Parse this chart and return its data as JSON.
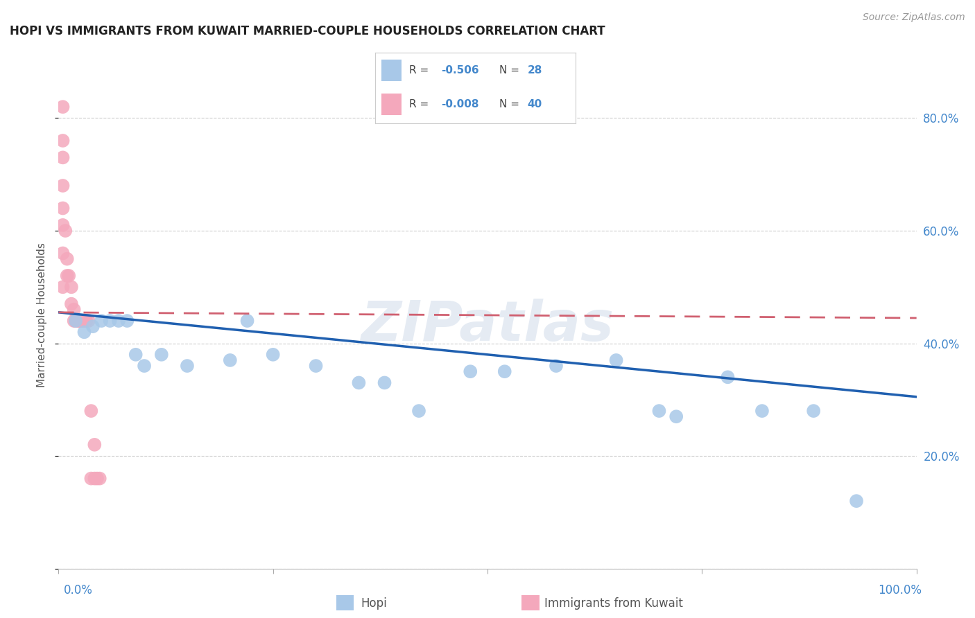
{
  "title": "HOPI VS IMMIGRANTS FROM KUWAIT MARRIED-COUPLE HOUSEHOLDS CORRELATION CHART",
  "source": "Source: ZipAtlas.com",
  "ylabel": "Married-couple Households",
  "watermark": "ZIPatlas",
  "legend_R_hopi": "-0.506",
  "legend_N_hopi": "28",
  "legend_R_kuwait": "-0.008",
  "legend_N_kuwait": "40",
  "hopi_color": "#a8c8e8",
  "kuwait_color": "#f4a8bc",
  "hopi_line_color": "#2060b0",
  "kuwait_line_color": "#d06070",
  "label_color": "#4488cc",
  "right_tick_color": "#4488cc",
  "hopi_x": [
    0.02,
    0.03,
    0.04,
    0.05,
    0.06,
    0.07,
    0.08,
    0.09,
    0.1,
    0.12,
    0.15,
    0.2,
    0.22,
    0.25,
    0.3,
    0.35,
    0.38,
    0.42,
    0.48,
    0.52,
    0.58,
    0.65,
    0.7,
    0.72,
    0.78,
    0.82,
    0.88,
    0.93
  ],
  "hopi_y": [
    0.44,
    0.42,
    0.43,
    0.44,
    0.44,
    0.44,
    0.44,
    0.38,
    0.36,
    0.38,
    0.36,
    0.37,
    0.44,
    0.38,
    0.36,
    0.33,
    0.33,
    0.28,
    0.35,
    0.35,
    0.36,
    0.37,
    0.28,
    0.27,
    0.34,
    0.28,
    0.28,
    0.12
  ],
  "kuwait_x": [
    0.005,
    0.005,
    0.005,
    0.005,
    0.005,
    0.005,
    0.005,
    0.005,
    0.008,
    0.01,
    0.01,
    0.012,
    0.015,
    0.015,
    0.018,
    0.018,
    0.02,
    0.02,
    0.022,
    0.022,
    0.022,
    0.022,
    0.025,
    0.025,
    0.025,
    0.025,
    0.028,
    0.028,
    0.03,
    0.03,
    0.032,
    0.032,
    0.032,
    0.035,
    0.038,
    0.038,
    0.042,
    0.042,
    0.045,
    0.048
  ],
  "kuwait_y": [
    0.82,
    0.76,
    0.73,
    0.68,
    0.64,
    0.61,
    0.56,
    0.5,
    0.6,
    0.55,
    0.52,
    0.52,
    0.5,
    0.47,
    0.46,
    0.44,
    0.44,
    0.44,
    0.44,
    0.44,
    0.44,
    0.44,
    0.44,
    0.44,
    0.44,
    0.44,
    0.44,
    0.44,
    0.44,
    0.44,
    0.44,
    0.44,
    0.44,
    0.44,
    0.28,
    0.16,
    0.22,
    0.16,
    0.16,
    0.16
  ],
  "hopi_trend_x": [
    0.0,
    1.0
  ],
  "hopi_trend_y": [
    0.455,
    0.305
  ],
  "kuwait_trend_x": [
    0.0,
    1.0
  ],
  "kuwait_trend_y": [
    0.455,
    0.445
  ],
  "xlim": [
    0.0,
    1.0
  ],
  "ylim": [
    0.0,
    0.9
  ],
  "yticks": [
    0.0,
    0.2,
    0.4,
    0.6,
    0.8
  ],
  "xticks": [
    0.0,
    0.25,
    0.5,
    0.75,
    1.0
  ],
  "background_color": "#ffffff",
  "grid_color": "#cccccc"
}
